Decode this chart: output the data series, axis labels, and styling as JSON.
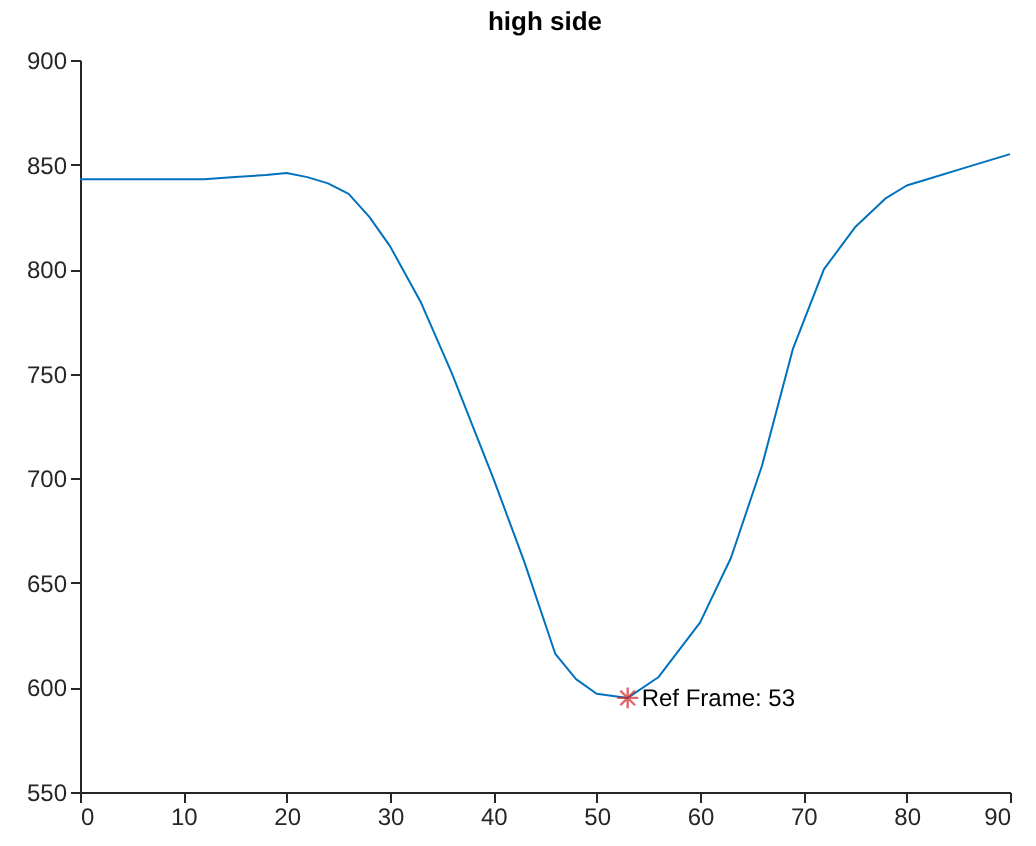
{
  "chart_data": {
    "type": "line",
    "title": "high side",
    "xlim": [
      0,
      90
    ],
    "xticks": [
      0,
      10,
      20,
      30,
      40,
      50,
      60,
      70,
      80,
      90
    ],
    "ylim": [
      550,
      900
    ],
    "yticks": [
      550,
      600,
      650,
      700,
      750,
      800,
      850,
      900
    ],
    "series": [
      {
        "color": "#0072bd",
        "x": [
          0,
          5,
          10,
          12,
          15,
          18,
          20,
          22,
          24,
          26,
          28,
          30,
          33,
          36,
          40,
          43,
          46,
          48,
          50,
          53,
          56,
          60,
          63,
          66,
          69,
          72,
          75,
          78,
          80,
          82,
          86,
          90
        ],
        "values": [
          843,
          843,
          843,
          843,
          844,
          845,
          846,
          844,
          841,
          836,
          825,
          811,
          784,
          750,
          700,
          660,
          616,
          604,
          597,
          595,
          605,
          631,
          662,
          706,
          762,
          800,
          820,
          834,
          840,
          843,
          849,
          855
        ]
      },
      {
        "type": "scatter",
        "marker": "cross",
        "color": "#d62728",
        "x": [
          53
        ],
        "values": [
          595
        ]
      }
    ],
    "annotations": [
      {
        "text": "Ref Frame: 53",
        "x": 53,
        "y": 595
      }
    ]
  }
}
